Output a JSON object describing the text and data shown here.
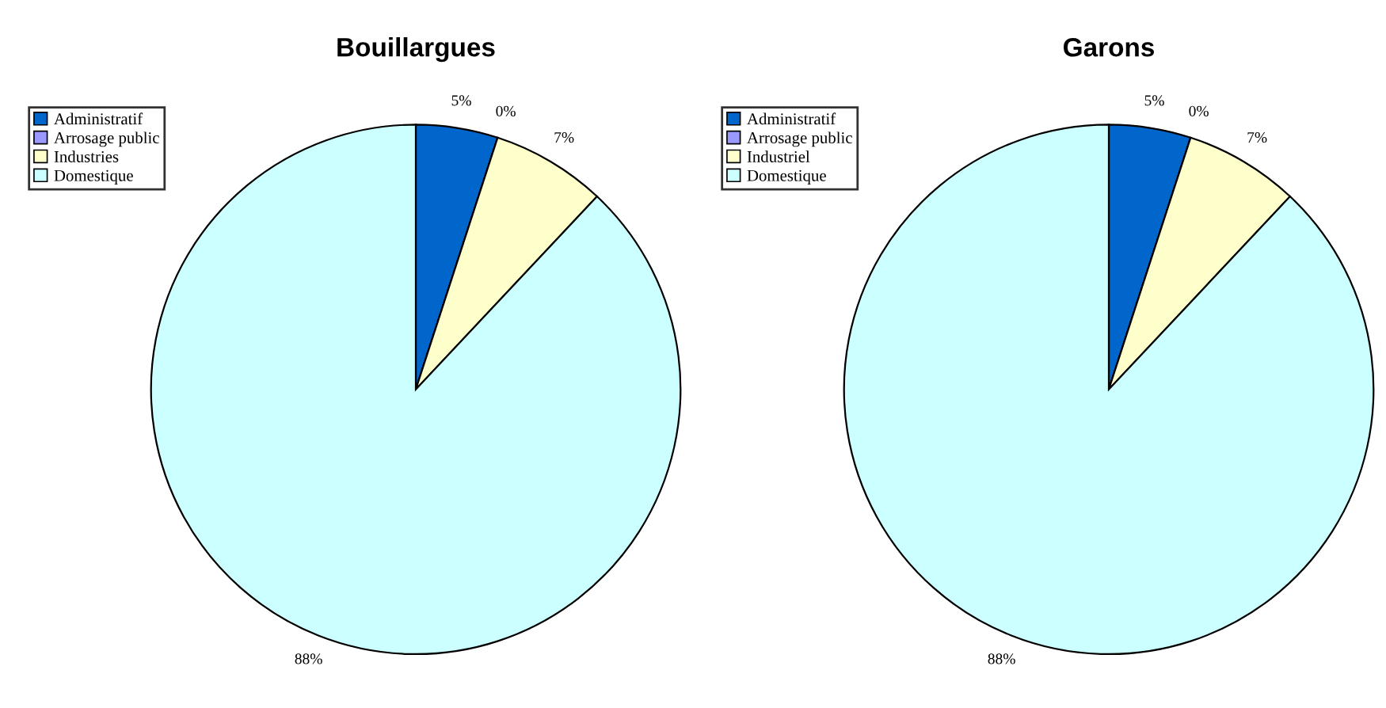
{
  "chart_data": [
    {
      "type": "pie",
      "title": "Bouillargues",
      "categories": [
        "Administratif",
        "Arrosage public",
        "Industries",
        "Domestique"
      ],
      "values": [
        5,
        0,
        7,
        88
      ],
      "value_labels": [
        "5%",
        "0%",
        "7%",
        "88%"
      ],
      "colors": [
        "#0066cc",
        "#9999ff",
        "#ffffcc",
        "#ccffff"
      ],
      "legend": "top left"
    },
    {
      "type": "pie",
      "title": "Garons",
      "categories": [
        "Administratif",
        "Arrosage public",
        "Industriel",
        "Domestique"
      ],
      "values": [
        5,
        0,
        7,
        88
      ],
      "value_labels": [
        "5%",
        "0%",
        "7%",
        "88%"
      ],
      "colors": [
        "#0066cc",
        "#9999ff",
        "#ffffcc",
        "#ccffff"
      ],
      "legend": "top left"
    }
  ]
}
